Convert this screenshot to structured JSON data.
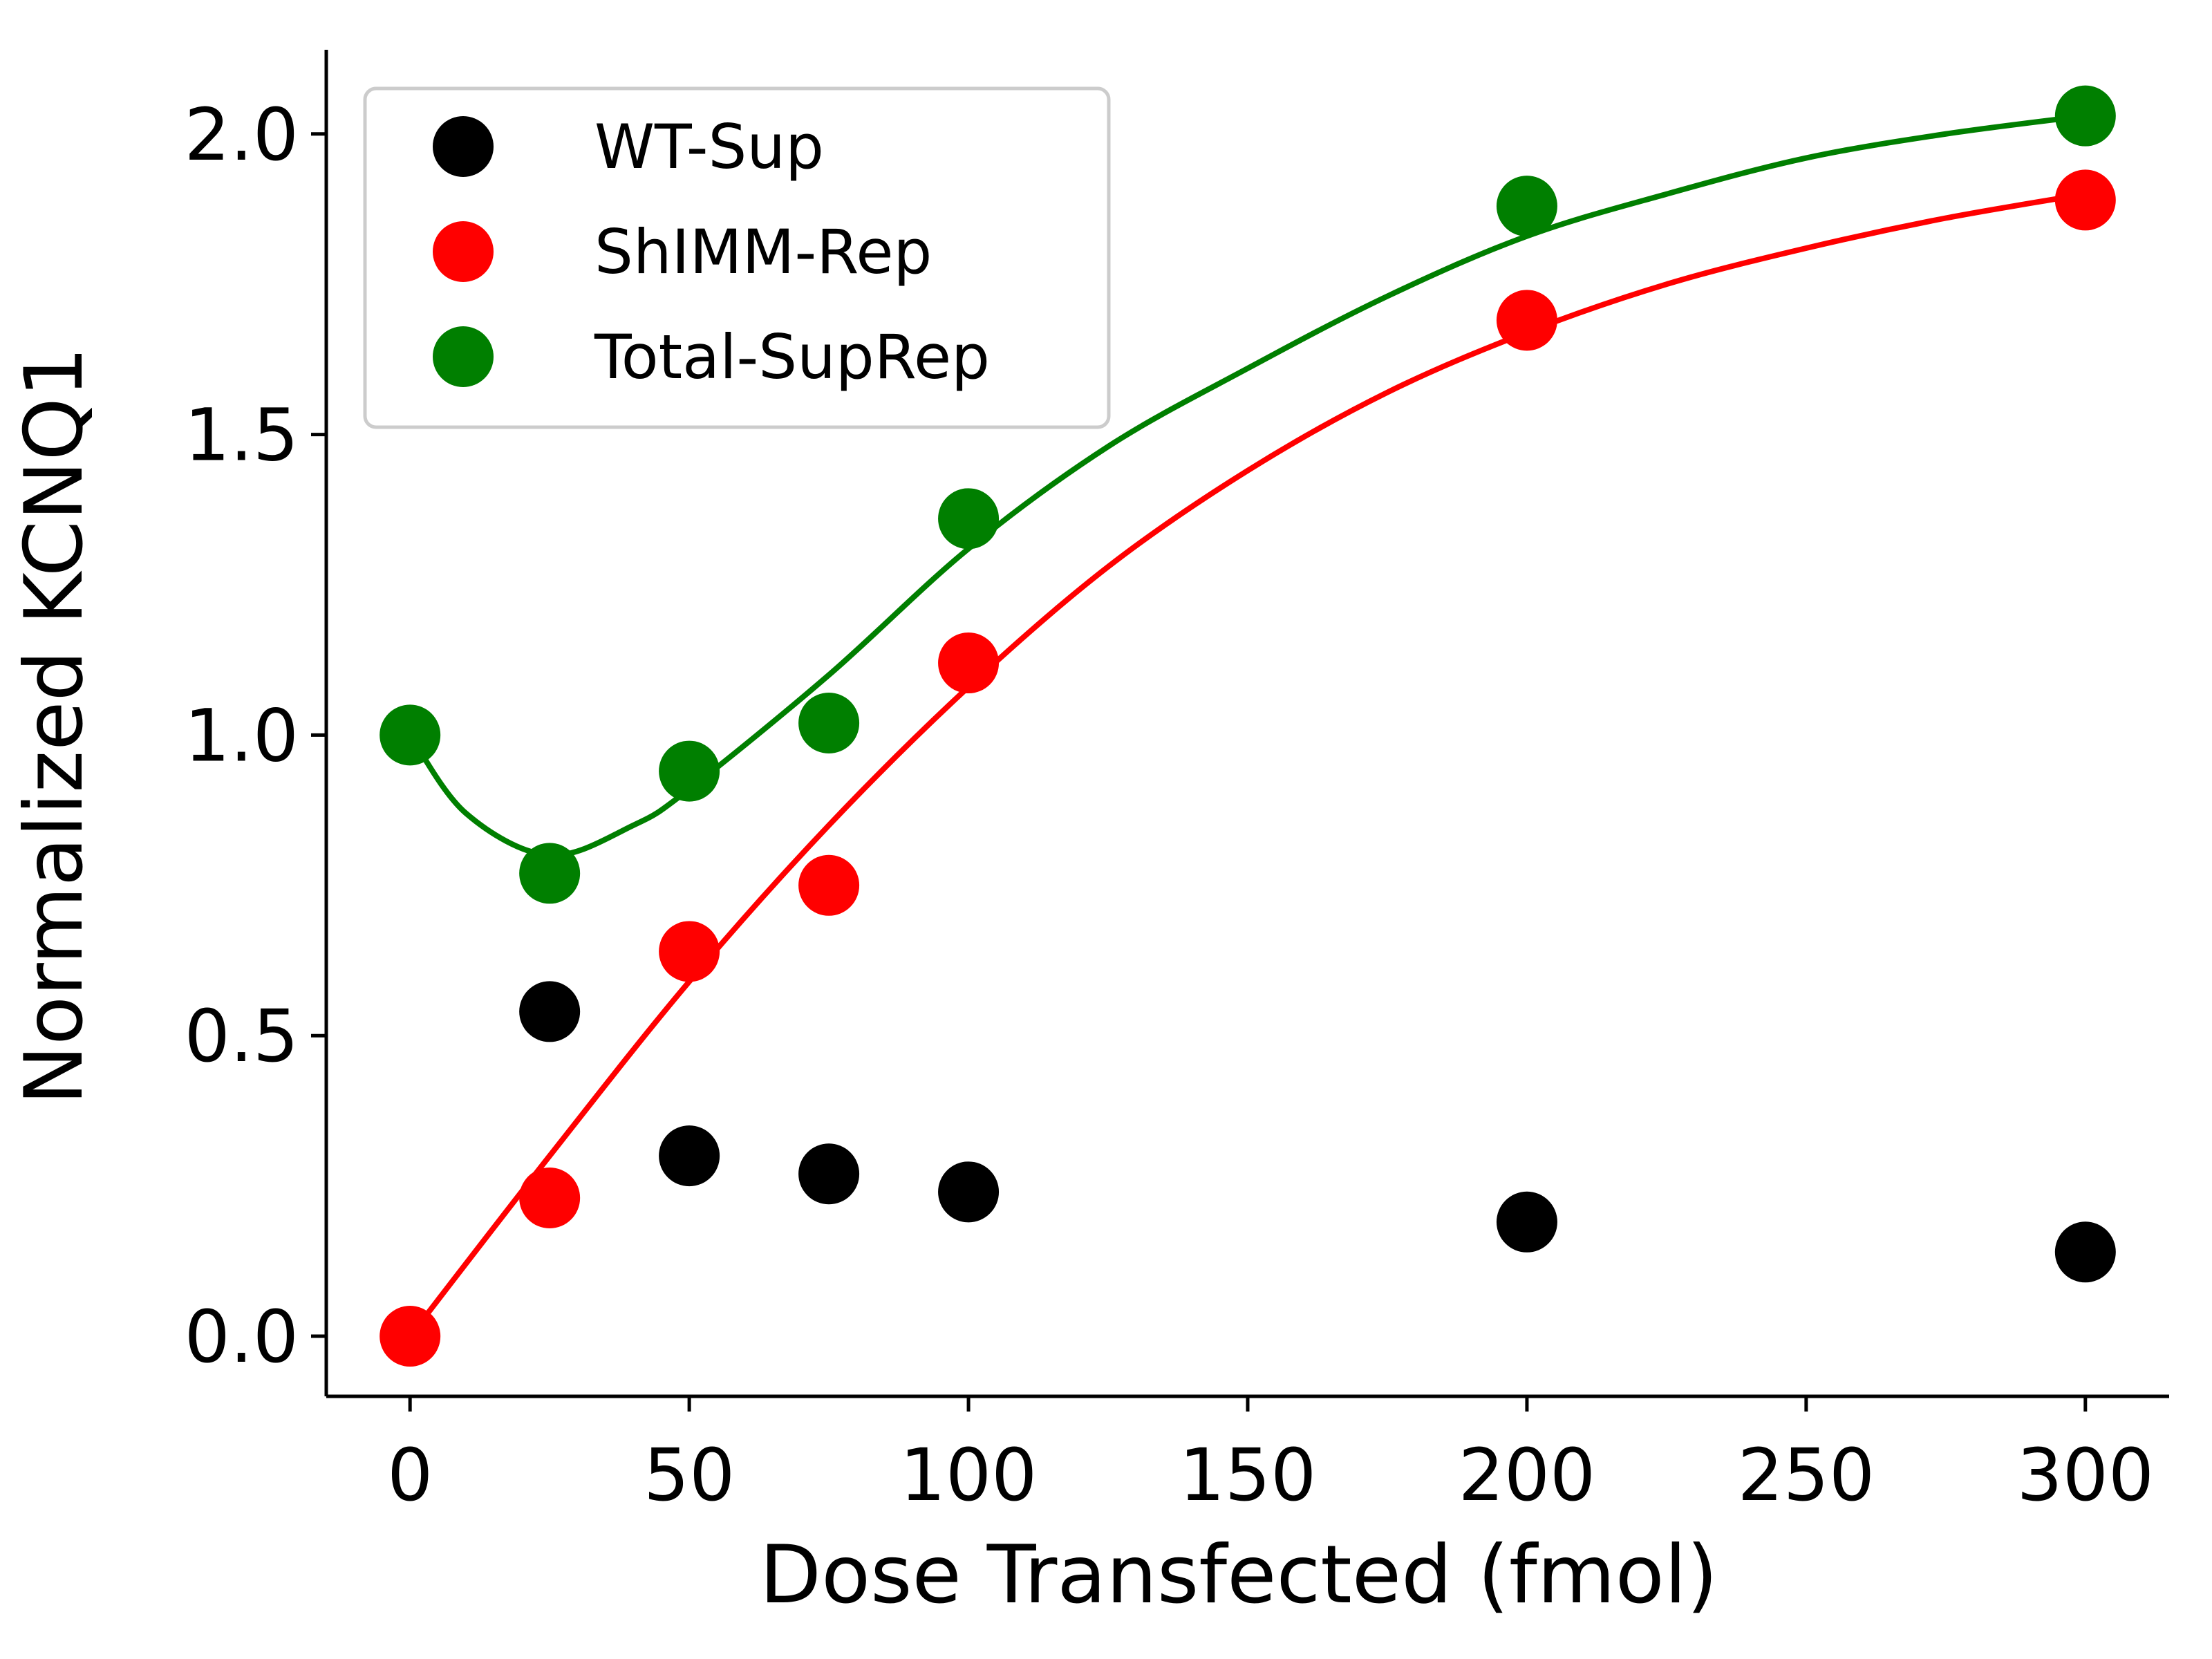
{
  "chart_data": {
    "type": "scatter",
    "title": "",
    "xlabel": "Dose Transfected (fmol)",
    "ylabel": "Normalized KCNQ1",
    "xlim": [
      -15,
      315
    ],
    "ylim": [
      -0.1,
      2.14
    ],
    "xticks": [
      0,
      50,
      100,
      150,
      200,
      250,
      300
    ],
    "xtick_labels": [
      "0",
      "50",
      "100",
      "150",
      "200",
      "250",
      "300"
    ],
    "yticks": [
      0.0,
      0.5,
      1.0,
      1.5,
      2.0
    ],
    "ytick_labels": [
      "0.0",
      "0.5",
      "1.0",
      "1.5",
      "2.0"
    ],
    "grid": false,
    "legend_position": "top-left",
    "series": [
      {
        "name": "WT-Sup",
        "color": "#000000",
        "x": [
          25,
          50,
          75,
          100,
          200,
          300
        ],
        "y": [
          0.54,
          0.3,
          0.27,
          0.24,
          0.19,
          0.14
        ],
        "fit": null
      },
      {
        "name": "ShIMM-Rep",
        "color": "#ff0000",
        "x": [
          0,
          25,
          50,
          75,
          100,
          200,
          300
        ],
        "y": [
          0.0,
          0.23,
          0.64,
          0.75,
          1.12,
          1.69,
          1.89
        ],
        "fit": {
          "x": [
            0,
            25,
            50,
            75,
            100,
            125,
            150,
            175,
            200,
            225,
            250,
            275,
            300
          ],
          "y": [
            0.0,
            0.3,
            0.59,
            0.85,
            1.08,
            1.28,
            1.44,
            1.57,
            1.67,
            1.75,
            1.81,
            1.86,
            1.9
          ]
        }
      },
      {
        "name": "Total-SupRep",
        "color": "#007f00",
        "x": [
          0,
          25,
          50,
          75,
          100,
          200,
          300
        ],
        "y": [
          1.0,
          0.77,
          0.94,
          1.02,
          1.36,
          1.88,
          2.03
        ],
        "fit": {
          "x": [
            0,
            10,
            25,
            40,
            50,
            75,
            100,
            125,
            150,
            175,
            200,
            225,
            250,
            275,
            300
          ],
          "y": [
            1.0,
            0.87,
            0.8,
            0.85,
            0.91,
            1.1,
            1.31,
            1.48,
            1.61,
            1.73,
            1.83,
            1.9,
            1.96,
            2.0,
            2.03
          ]
        }
      }
    ]
  }
}
